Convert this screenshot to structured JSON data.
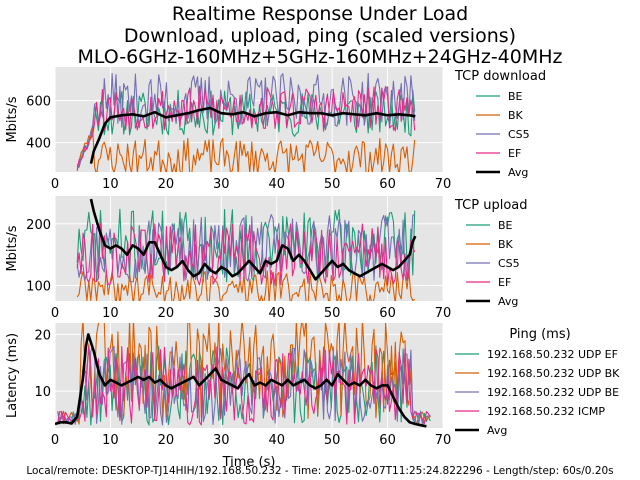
{
  "title_lines": [
    "Realtime Response Under Load",
    "Download, upload, ping (scaled versions)",
    "MLO-6GHz-160MHz+5GHz-160MHz+24GHz-40MHz"
  ],
  "footer": "Local/remote: DESKTOP-TJ14HIH/192.168.50.232 - Time: 2025-02-07T11:25:24.822296 - Length/step: 60s/0.20s",
  "chart_data": [
    {
      "type": "line",
      "xlabel": "",
      "ylabel": "Mbits/s",
      "xlim": [
        0,
        70
      ],
      "ylim": [
        260,
        760
      ],
      "xticks": [
        0,
        10,
        20,
        30,
        40,
        50,
        60,
        70
      ],
      "yticks": [
        400,
        600
      ],
      "grid": true,
      "legend_title": "TCP download",
      "legend_placement": "right-outside",
      "series": [
        {
          "name": "BE",
          "color": "#1b9e77",
          "mean": 540,
          "amp": 110,
          "seed": 11
        },
        {
          "name": "BK",
          "color": "#d95f02",
          "mean": 330,
          "amp": 90,
          "seed": 23
        },
        {
          "name": "CS5",
          "color": "#7570b3",
          "mean": 600,
          "amp": 130,
          "seed": 37
        },
        {
          "name": "EF",
          "color": "#e7298a",
          "mean": 560,
          "amp": 110,
          "seed": 53
        },
        {
          "name": "Avg",
          "color": "#000000",
          "bold": true,
          "points": [
            [
              6.5,
              300
            ],
            [
              7,
              360
            ],
            [
              8,
              420
            ],
            [
              9,
              490
            ],
            [
              10,
              520
            ],
            [
              12,
              530
            ],
            [
              14,
              535
            ],
            [
              16,
              525
            ],
            [
              18,
              545
            ],
            [
              20,
              520
            ],
            [
              22,
              530
            ],
            [
              24,
              540
            ],
            [
              26,
              555
            ],
            [
              28,
              565
            ],
            [
              30,
              540
            ],
            [
              32,
              535
            ],
            [
              34,
              545
            ],
            [
              36,
              525
            ],
            [
              38,
              540
            ],
            [
              40,
              545
            ],
            [
              42,
              530
            ],
            [
              44,
              545
            ],
            [
              46,
              540
            ],
            [
              48,
              540
            ],
            [
              50,
              530
            ],
            [
              52,
              540
            ],
            [
              54,
              535
            ],
            [
              56,
              530
            ],
            [
              58,
              540
            ],
            [
              60,
              530
            ],
            [
              62,
              535
            ],
            [
              64,
              530
            ],
            [
              65,
              525
            ]
          ]
        }
      ]
    },
    {
      "type": "line",
      "xlabel": "",
      "ylabel": "Mbits/s",
      "xlim": [
        0,
        70
      ],
      "ylim": [
        75,
        245
      ],
      "xticks": [
        0,
        10,
        20,
        30,
        40,
        50,
        60,
        70
      ],
      "yticks": [
        100,
        200
      ],
      "grid": true,
      "legend_title": "TCP upload",
      "legend_placement": "right-outside",
      "series": [
        {
          "name": "BE",
          "color": "#1b9e77",
          "mean": 165,
          "amp": 60,
          "seed": 71
        },
        {
          "name": "BK",
          "color": "#d95f02",
          "mean": 95,
          "amp": 30,
          "seed": 89
        },
        {
          "name": "CS5",
          "color": "#7570b3",
          "mean": 160,
          "amp": 55,
          "seed": 97
        },
        {
          "name": "EF",
          "color": "#e7298a",
          "mean": 150,
          "amp": 50,
          "seed": 113
        },
        {
          "name": "Avg",
          "color": "#000000",
          "bold": true,
          "points": [
            [
              6.5,
              240
            ],
            [
              7,
              220
            ],
            [
              8,
              190
            ],
            [
              9,
              165
            ],
            [
              10,
              160
            ],
            [
              11,
              165
            ],
            [
              12,
              160
            ],
            [
              13,
              150
            ],
            [
              14,
              165
            ],
            [
              15,
              160
            ],
            [
              16,
              150
            ],
            [
              17,
              170
            ],
            [
              18,
              170
            ],
            [
              19,
              150
            ],
            [
              20,
              130
            ],
            [
              21,
              125
            ],
            [
              22,
              130
            ],
            [
              23,
              140
            ],
            [
              24,
              125
            ],
            [
              25,
              115
            ],
            [
              26,
              120
            ],
            [
              27,
              135
            ],
            [
              28,
              125
            ],
            [
              29,
              120
            ],
            [
              30,
              130
            ],
            [
              31,
              125
            ],
            [
              32,
              115
            ],
            [
              33,
              120
            ],
            [
              34,
              130
            ],
            [
              35,
              140
            ],
            [
              36,
              130
            ],
            [
              37,
              120
            ],
            [
              38,
              140
            ],
            [
              39,
              135
            ],
            [
              40,
              140
            ],
            [
              41,
              165
            ],
            [
              42,
              160
            ],
            [
              43,
              140
            ],
            [
              44,
              150
            ],
            [
              45,
              140
            ],
            [
              46,
              125
            ],
            [
              47,
              110
            ],
            [
              48,
              120
            ],
            [
              49,
              130
            ],
            [
              50,
              140
            ],
            [
              51,
              130
            ],
            [
              52,
              135
            ],
            [
              53,
              125
            ],
            [
              54,
              120
            ],
            [
              55,
              115
            ],
            [
              56,
              120
            ],
            [
              57,
              125
            ],
            [
              58,
              130
            ],
            [
              59,
              135
            ],
            [
              60,
              130
            ],
            [
              61,
              125
            ],
            [
              62,
              130
            ],
            [
              63,
              140
            ],
            [
              64,
              150
            ],
            [
              64.5,
              170
            ],
            [
              65,
              180
            ]
          ]
        }
      ]
    },
    {
      "type": "line",
      "xlabel": "Time (s)",
      "ylabel": "Latency (ms)",
      "xlim": [
        0,
        70
      ],
      "ylim": [
        3.5,
        22
      ],
      "xticks": [
        0,
        10,
        20,
        30,
        40,
        50,
        60,
        70
      ],
      "yticks": [
        10,
        20
      ],
      "grid": true,
      "legend_title": "Ping (ms)",
      "legend_placement": "right-outside",
      "series": [
        {
          "name": "192.168.50.232 UDP EF",
          "color": "#1b9e77",
          "mean": 11,
          "amp": 7,
          "seed": 131
        },
        {
          "name": "192.168.50.232 UDP BK",
          "color": "#d95f02",
          "mean": 14,
          "amp": 9,
          "seed": 151
        },
        {
          "name": "192.168.50.232 UDP BE",
          "color": "#7570b3",
          "mean": 11,
          "amp": 7,
          "seed": 173
        },
        {
          "name": "192.168.50.232 ICMP",
          "color": "#e7298a",
          "mean": 11,
          "amp": 7,
          "seed": 197
        },
        {
          "name": "Avg",
          "color": "#000000",
          "bold": true,
          "points": [
            [
              0,
              4.2
            ],
            [
              1,
              4.5
            ],
            [
              2,
              4.5
            ],
            [
              3,
              4.3
            ],
            [
              4,
              5.5
            ],
            [
              5,
              12
            ],
            [
              5.6,
              18
            ],
            [
              6,
              20
            ],
            [
              7,
              17
            ],
            [
              8,
              13
            ],
            [
              9,
              11
            ],
            [
              10,
              12
            ],
            [
              11,
              11.5
            ],
            [
              12,
              11
            ],
            [
              13,
              11.5
            ],
            [
              14,
              12
            ],
            [
              15,
              12.5
            ],
            [
              16,
              12
            ],
            [
              17,
              12.5
            ],
            [
              18,
              11.5
            ],
            [
              19,
              12
            ],
            [
              20,
              11
            ],
            [
              21,
              10.5
            ],
            [
              22,
              11
            ],
            [
              23,
              11.5
            ],
            [
              24,
              12
            ],
            [
              25,
              12.5
            ],
            [
              26,
              11
            ],
            [
              27,
              12
            ],
            [
              28,
              13
            ],
            [
              29,
              14
            ],
            [
              30,
              12
            ],
            [
              31,
              11.5
            ],
            [
              32,
              11
            ],
            [
              33,
              10.5
            ],
            [
              34,
              12
            ],
            [
              35,
              13
            ],
            [
              36,
              11
            ],
            [
              37,
              11.5
            ],
            [
              38,
              11
            ],
            [
              39,
              12
            ],
            [
              40,
              11.5
            ],
            [
              41,
              11
            ],
            [
              42,
              12
            ],
            [
              43,
              11
            ],
            [
              44,
              11.5
            ],
            [
              45,
              12
            ],
            [
              46,
              11
            ],
            [
              47,
              10.5
            ],
            [
              48,
              11
            ],
            [
              49,
              12
            ],
            [
              50,
              11
            ],
            [
              51,
              13
            ],
            [
              52,
              12
            ],
            [
              53,
              11
            ],
            [
              54,
              11.5
            ],
            [
              55,
              11
            ],
            [
              56,
              12
            ],
            [
              57,
              11
            ],
            [
              58,
              10.5
            ],
            [
              59,
              11
            ],
            [
              60,
              11
            ],
            [
              61,
              9
            ],
            [
              62,
              7
            ],
            [
              63,
              5.5
            ],
            [
              64,
              4.5
            ],
            [
              65,
              4.2
            ],
            [
              66,
              4
            ],
            [
              67,
              3.8
            ]
          ]
        }
      ]
    }
  ]
}
